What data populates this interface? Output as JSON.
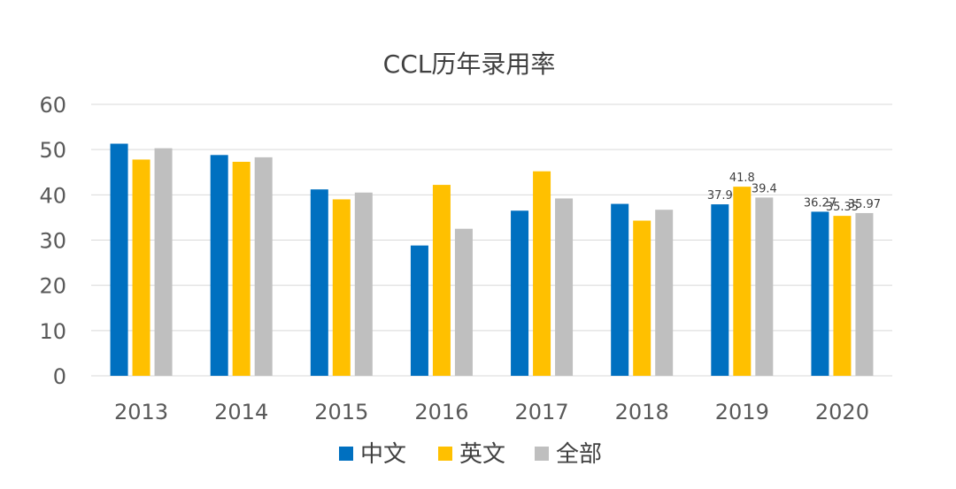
{
  "chart_data": {
    "type": "bar",
    "title": "CCL历年录用率",
    "xlabel": "",
    "ylabel": "",
    "ylim": [
      0,
      60
    ],
    "yticks": [
      0,
      10,
      20,
      30,
      40,
      50,
      60
    ],
    "grid": true,
    "legend_position": "bottom",
    "categories": [
      "2013",
      "2014",
      "2015",
      "2016",
      "2017",
      "2018",
      "2019",
      "2020"
    ],
    "series": [
      {
        "name": "中文",
        "color": "#0070C0",
        "values": [
          51.3,
          48.8,
          41.2,
          28.8,
          36.5,
          38.0,
          37.9,
          36.27
        ],
        "labels": [
          null,
          null,
          null,
          null,
          null,
          null,
          "37.9",
          "36.27"
        ]
      },
      {
        "name": "英文",
        "color": "#FFC000",
        "values": [
          47.8,
          47.3,
          39.0,
          42.2,
          45.2,
          34.3,
          41.8,
          35.35
        ],
        "labels": [
          null,
          null,
          null,
          null,
          null,
          null,
          "41.8",
          "35.35"
        ]
      },
      {
        "name": "全部",
        "color": "#BFBFBF",
        "values": [
          50.3,
          48.3,
          40.5,
          32.5,
          39.2,
          36.7,
          39.4,
          35.97
        ],
        "labels": [
          null,
          null,
          null,
          null,
          null,
          null,
          "39.4",
          "35.97"
        ]
      }
    ]
  }
}
